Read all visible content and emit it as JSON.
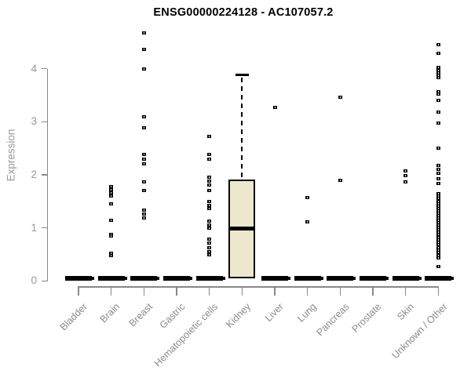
{
  "colors": {
    "background": "#ffffff",
    "title": "#000000",
    "axis": "#888888",
    "tick_label": "#999999",
    "category_label": "#8a8a8a",
    "box_fill": "#ECE7CD",
    "box_border": "#000000",
    "point": "#000000"
  },
  "chart_data": {
    "type": "boxplot",
    "title": "ENSG00000224128 - AC107057.2",
    "xlabel": "",
    "ylabel": "Expression",
    "ylim": [
      0,
      4.7
    ],
    "yticks": [
      0,
      1,
      2,
      3,
      4
    ],
    "grid": false,
    "legend": false,
    "categories": [
      "Bladder",
      "Brain",
      "Breast",
      "Gastric",
      "Hematopoietic cells",
      "Kidney",
      "Liver",
      "Lung",
      "Pancreas",
      "Prostate",
      "Skin",
      "Unknown / Other"
    ],
    "series": [
      {
        "name": "Bladder",
        "q1": 0,
        "median": 0,
        "q3": 0,
        "whisker_high": null,
        "outliers": []
      },
      {
        "name": "Brain",
        "q1": 0,
        "median": 0,
        "q3": 0,
        "whisker_high": null,
        "outliers": [
          1.78,
          1.72,
          1.66,
          1.6,
          1.45,
          1.14,
          0.88,
          0.84,
          0.52,
          0.48
        ]
      },
      {
        "name": "Breast",
        "q1": 0,
        "median": 0,
        "q3": 0,
        "whisker_high": null,
        "outliers": [
          4.67,
          4.36,
          4.0,
          3.1,
          2.88,
          2.38,
          2.29,
          2.2,
          1.87,
          1.7,
          1.33,
          1.26,
          1.18
        ]
      },
      {
        "name": "Gastric",
        "q1": 0,
        "median": 0,
        "q3": 0,
        "whisker_high": null,
        "outliers": []
      },
      {
        "name": "Hematopoietic cells",
        "q1": 0,
        "median": 0,
        "q3": 0,
        "whisker_high": null,
        "outliers": [
          2.72,
          2.39,
          2.29,
          1.95,
          1.88,
          1.81,
          1.7,
          1.5,
          1.43,
          1.36,
          1.13,
          1.06,
          1.0,
          0.79,
          0.71,
          0.63,
          0.55,
          0.49
        ]
      },
      {
        "name": "Kidney",
        "q1": 0.05,
        "median": 0.99,
        "q3": 1.91,
        "whisker_high": 3.88,
        "outliers": []
      },
      {
        "name": "Liver",
        "q1": 0,
        "median": 0,
        "q3": 0,
        "whisker_high": null,
        "outliers": [
          3.27
        ]
      },
      {
        "name": "Lung",
        "q1": 0,
        "median": 0,
        "q3": 0,
        "whisker_high": null,
        "outliers": [
          1.57,
          1.12
        ]
      },
      {
        "name": "Pancreas",
        "q1": 0,
        "median": 0,
        "q3": 0,
        "whisker_high": null,
        "outliers": [
          3.47,
          1.9
        ]
      },
      {
        "name": "Prostate",
        "q1": 0,
        "median": 0,
        "q3": 0,
        "whisker_high": null,
        "outliers": []
      },
      {
        "name": "Skin",
        "q1": 0,
        "median": 0,
        "q3": 0,
        "whisker_high": null,
        "outliers": [
          2.08,
          1.98,
          1.87
        ]
      },
      {
        "name": "Unknown / Other",
        "q1": 0,
        "median": 0,
        "q3": 0,
        "whisker_high": null,
        "outliers": [
          4.46,
          4.29,
          4.02,
          3.97,
          3.92,
          3.88,
          3.84,
          3.57,
          3.52,
          3.41,
          3.18,
          2.98,
          2.5,
          2.17,
          2.1,
          2.03,
          1.92,
          1.84,
          1.65,
          1.6,
          1.55,
          1.5,
          1.46,
          1.41,
          1.37,
          1.32,
          1.28,
          1.23,
          1.19,
          1.14,
          1.1,
          1.05,
          1.01,
          0.96,
          0.92,
          0.87,
          0.82,
          0.78,
          0.73,
          0.68,
          0.63,
          0.58,
          0.53,
          0.48,
          0.44,
          0.27
        ]
      }
    ]
  }
}
